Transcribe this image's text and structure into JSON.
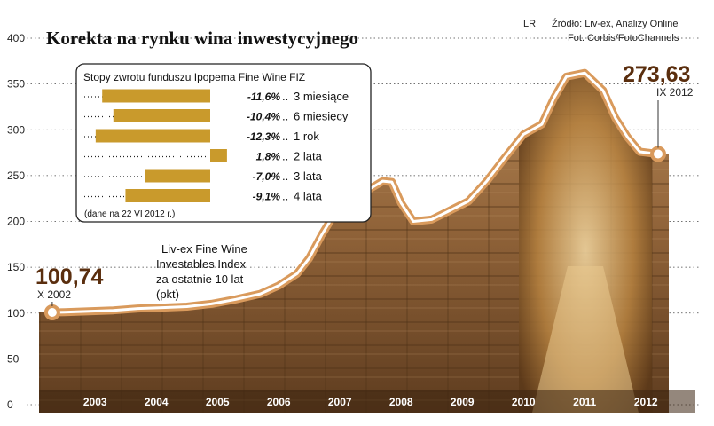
{
  "title": "Korekta na rynku wina inwestycyjnego",
  "credit_initials": "LR",
  "source_line": "Źródło: Liv-ex, Analizy Online",
  "photo_line": "Fot. Corbis/FotoChannels",
  "chart_data": [
    {
      "type": "line",
      "name": "Liv-ex Fine Wine Investables Index",
      "label_lines": [
        "Liv-ex Fine Wine",
        "Investables Index",
        "za ostatnie 10 lat",
        "(pkt)"
      ],
      "x_categories": [
        "2003",
        "2004",
        "2005",
        "2006",
        "2007",
        "2008",
        "2009",
        "2010",
        "2011",
        "2012"
      ],
      "y_ticks": [
        0,
        50,
        100,
        150,
        200,
        250,
        300,
        350,
        400
      ],
      "ylim": [
        0,
        400
      ],
      "grid": "dotted-horizontal",
      "series": [
        {
          "x": [
            2002.8,
            2003.0,
            2003.4,
            2003.8,
            2004.2,
            2004.6,
            2005.0,
            2005.4,
            2005.8,
            2006.2,
            2006.5,
            2006.8,
            2007.0,
            2007.2,
            2007.4,
            2007.6,
            2007.8,
            2008.0,
            2008.2,
            2008.35,
            2008.5,
            2008.7,
            2009.0,
            2009.3,
            2009.6,
            2009.9,
            2010.2,
            2010.5,
            2010.8,
            2011.0,
            2011.2,
            2011.5,
            2011.8,
            2012.0,
            2012.2,
            2012.4,
            2012.7
          ],
          "values": [
            100.74,
            101,
            102,
            103,
            105,
            106,
            107,
            110,
            115,
            121,
            130,
            143,
            160,
            185,
            207,
            224,
            228,
            236,
            244,
            243,
            220,
            200,
            202,
            212,
            222,
            244,
            270,
            295,
            306,
            335,
            358,
            362,
            343,
            313,
            292,
            276,
            273.63
          ]
        }
      ],
      "start_label": {
        "value": "100,74",
        "date": "X 2002"
      },
      "end_label": {
        "value": "273,63",
        "date": "IX 2012"
      }
    },
    {
      "type": "bar",
      "orientation": "horizontal",
      "title": "Stopy zwrotu funduszu Ipopema Fine Wine FIZ",
      "categories": [
        "3 miesiące",
        "6 miesięcy",
        "1 rok",
        "2 lata",
        "3 lata",
        "4 lata"
      ],
      "values": [
        -11.6,
        -10.4,
        -12.3,
        1.8,
        -7.0,
        -9.1
      ],
      "value_labels": [
        "-11,6%",
        "-10,4%",
        "-12,3%",
        "1,8%",
        "-7,0%",
        "-9,1%"
      ],
      "note": "(dane na 22 VI 2012 r.)"
    }
  ],
  "colors": {
    "bar": "#c99a2c",
    "line_outer": "#d99a5c",
    "line_inner": "#ffffff",
    "callout_text": "#5a2e0e",
    "photo_wood": "#8a5f36"
  }
}
